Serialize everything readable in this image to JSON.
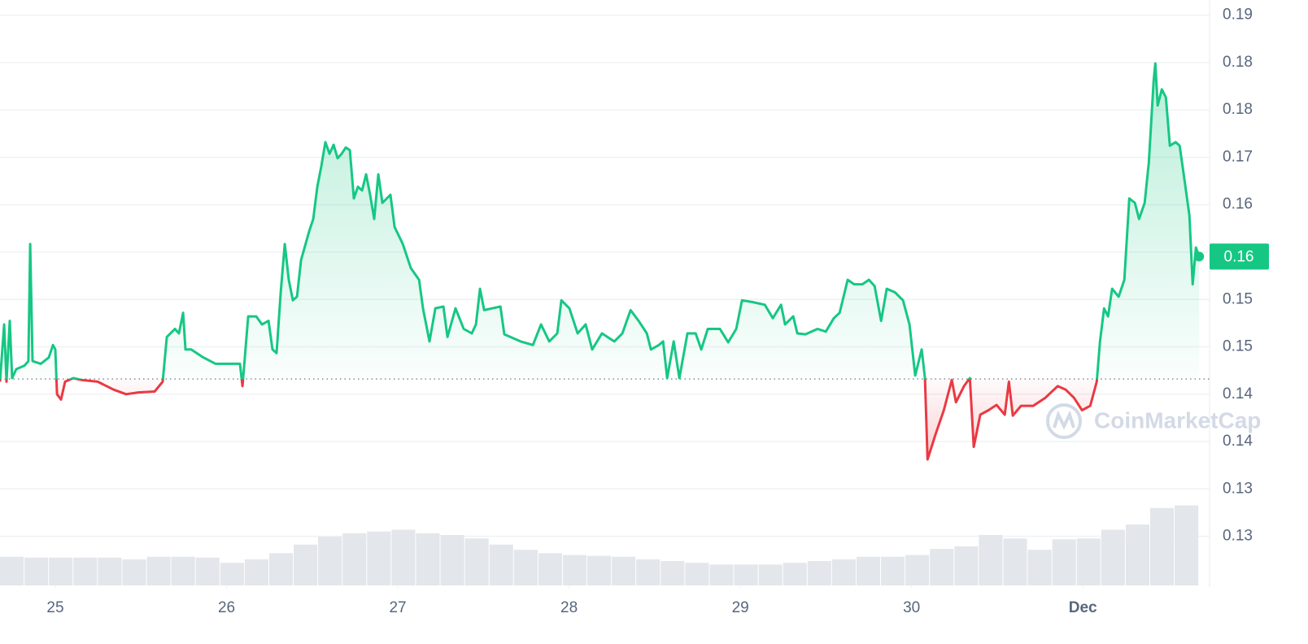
{
  "chart_data": {
    "type": "line",
    "x": [
      24.677,
      24.701,
      24.715,
      24.734,
      24.748,
      24.772,
      24.82,
      24.843,
      24.853,
      24.867,
      24.915,
      24.962,
      24.986,
      25.0,
      25.01,
      25.033,
      25.057,
      25.105,
      25.152,
      25.247,
      25.342,
      25.413,
      25.485,
      25.58,
      25.627,
      25.651,
      25.698,
      25.722,
      25.746,
      25.76,
      25.793,
      25.865,
      25.936,
      26.078,
      26.093,
      26.126,
      26.173,
      26.207,
      26.245,
      26.268,
      26.292,
      26.316,
      26.34,
      26.363,
      26.387,
      26.411,
      26.435,
      26.482,
      26.506,
      26.53,
      26.553,
      26.577,
      26.601,
      26.625,
      26.648,
      26.672,
      26.696,
      26.72,
      26.743,
      26.767,
      26.791,
      26.815,
      26.838,
      26.862,
      26.886,
      26.91,
      26.957,
      26.981,
      27.029,
      27.076,
      27.124,
      27.147,
      27.185,
      27.219,
      27.266,
      27.29,
      27.337,
      27.385,
      27.432,
      27.456,
      27.48,
      27.504,
      27.551,
      27.599,
      27.622,
      27.717,
      27.789,
      27.836,
      27.884,
      27.931,
      27.955,
      28.002,
      28.05,
      28.097,
      28.135,
      28.192,
      28.264,
      28.311,
      28.359,
      28.406,
      28.454,
      28.478,
      28.525,
      28.549,
      28.573,
      28.611,
      28.644,
      28.691,
      28.739,
      28.772,
      28.81,
      28.881,
      28.929,
      28.976,
      29.01,
      29.071,
      29.143,
      29.19,
      29.238,
      29.261,
      29.309,
      29.333,
      29.38,
      29.451,
      29.499,
      29.546,
      29.58,
      29.627,
      29.665,
      29.713,
      29.751,
      29.784,
      29.822,
      29.855,
      29.903,
      29.95,
      29.988,
      30.021,
      30.059,
      30.078,
      30.093,
      30.14,
      30.188,
      30.235,
      30.259,
      30.306,
      30.34,
      30.363,
      30.401,
      30.449,
      30.496,
      30.544,
      30.568,
      30.591,
      30.639,
      30.71,
      30.781,
      30.853,
      30.9,
      30.948,
      30.995,
      31.043,
      31.081,
      31.1,
      31.124,
      31.147,
      31.171,
      31.209,
      31.242,
      31.271,
      31.304,
      31.328,
      31.361,
      31.385,
      31.413,
      31.423,
      31.437,
      31.461,
      31.485,
      31.508,
      31.542,
      31.565,
      31.589,
      31.622,
      31.641,
      31.66,
      31.679
    ],
    "series": [
      {
        "color": "#16c784",
        "values": [
          0.145,
          0.1514,
          0.145,
          0.1518,
          0.1454,
          0.1464,
          0.1468,
          0.1473,
          0.1604,
          0.1473,
          0.147,
          0.1477,
          0.1491,
          0.1486,
          0.1436,
          0.143,
          0.145,
          0.1454,
          0.1452,
          0.145,
          0.1441,
          0.1436,
          0.1438,
          0.1439,
          0.145,
          0.15,
          0.1509,
          0.1504,
          0.1527,
          0.1486,
          0.1486,
          0.1477,
          0.147,
          0.147,
          0.1445,
          0.1523,
          0.1523,
          0.1514,
          0.1518,
          0.1486,
          0.1482,
          0.155,
          0.1604,
          0.1564,
          0.1541,
          0.1545,
          0.1586,
          0.1618,
          0.1632,
          0.1668,
          0.1691,
          0.1718,
          0.1705,
          0.1715,
          0.17,
          0.1705,
          0.1712,
          0.1709,
          0.1655,
          0.1668,
          0.1664,
          0.1682,
          0.1659,
          0.1632,
          0.1682,
          0.165,
          0.1659,
          0.1623,
          0.1604,
          0.1577,
          0.1564,
          0.1532,
          0.1495,
          0.1532,
          0.1534,
          0.15,
          0.1532,
          0.1509,
          0.1504,
          0.1514,
          0.1554,
          0.153,
          0.1532,
          0.1534,
          0.1503,
          0.1495,
          0.1491,
          0.1514,
          0.1495,
          0.1504,
          0.1541,
          0.1532,
          0.1504,
          0.1514,
          0.1486,
          0.1504,
          0.1495,
          0.1504,
          0.153,
          0.1518,
          0.1504,
          0.1486,
          0.1491,
          0.1495,
          0.1454,
          0.1495,
          0.1454,
          0.1504,
          0.1504,
          0.1486,
          0.1509,
          0.1509,
          0.1494,
          0.1509,
          0.1541,
          0.1539,
          0.1536,
          0.1521,
          0.1536,
          0.1514,
          0.1523,
          0.1504,
          0.1503,
          0.1509,
          0.1506,
          0.1521,
          0.1527,
          0.1564,
          0.1559,
          0.1559,
          0.1564,
          0.1557,
          0.1518,
          0.1554,
          0.155,
          0.1541,
          0.1514,
          0.1457,
          0.1486,
          0.1454,
          0.1363,
          0.1391,
          0.1418,
          0.1452,
          0.1427,
          0.1445,
          0.1454,
          0.1377,
          0.1413,
          0.1418,
          0.1424,
          0.1413,
          0.145,
          0.1412,
          0.1423,
          0.1423,
          0.1432,
          0.1445,
          0.1441,
          0.1432,
          0.1418,
          0.1423,
          0.145,
          0.1495,
          0.1532,
          0.1523,
          0.1554,
          0.1545,
          0.1564,
          0.1655,
          0.165,
          0.1632,
          0.165,
          0.1695,
          0.1786,
          0.1806,
          0.1759,
          0.1777,
          0.1768,
          0.1714,
          0.1718,
          0.1714,
          0.1682,
          0.1636,
          0.1559,
          0.16,
          0.159
        ]
      }
    ],
    "baseline": 0.1453,
    "below_color": "#ea3943",
    "ylim": [
      0.1222,
      0.1877
    ],
    "yticks": [
      {
        "value": 0.186,
        "label": "0.19"
      },
      {
        "value": 0.1807,
        "label": "0.18"
      },
      {
        "value": 0.1754,
        "label": "0.18"
      },
      {
        "value": 0.1701,
        "label": "0.17"
      },
      {
        "value": 0.1648,
        "label": "0.16"
      },
      {
        "value": 0.1595,
        "label": "0.16"
      },
      {
        "value": 0.1542,
        "label": "0.15"
      },
      {
        "value": 0.1489,
        "label": "0.15"
      },
      {
        "value": 0.1436,
        "label": "0.14"
      },
      {
        "value": 0.1383,
        "label": "0.14"
      },
      {
        "value": 0.133,
        "label": "0.13"
      },
      {
        "value": 0.1277,
        "label": "0.13"
      }
    ],
    "xlim": [
      24.677,
      31.74
    ],
    "xticks": [
      25,
      26,
      27,
      28,
      29,
      30,
      {
        "value": 31,
        "label": "Dec"
      }
    ],
    "grid": true,
    "last_price": {
      "value": 0.159,
      "label": "0.16"
    },
    "volume": {
      "ylim": [
        0,
        100
      ],
      "color": "#e3e6ea",
      "values": [
        33,
        32,
        32,
        32,
        32,
        30,
        33,
        33,
        32,
        26,
        30,
        37,
        47,
        56,
        60,
        62,
        64,
        60,
        58,
        54,
        47,
        41,
        37,
        35,
        34,
        33,
        30,
        28,
        26,
        24,
        24,
        24,
        26,
        28,
        30,
        33,
        33,
        35,
        42,
        45,
        58,
        54,
        41,
        53,
        54,
        64,
        70,
        89,
        92
      ]
    },
    "watermark": "CoinMarketCap"
  }
}
